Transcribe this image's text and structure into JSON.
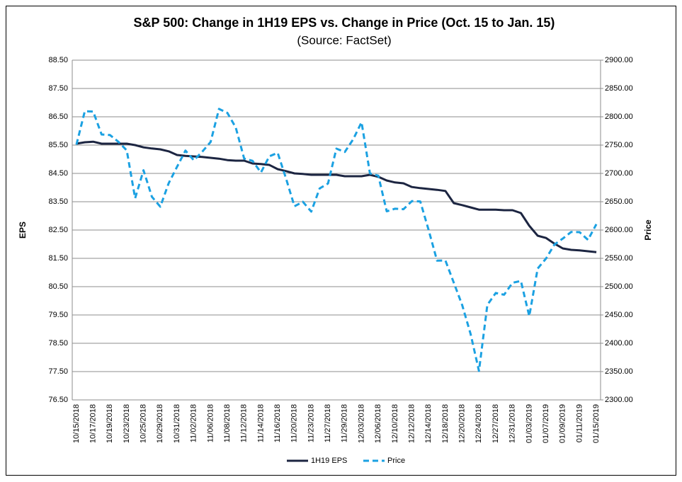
{
  "chart_data": {
    "type": "line",
    "title": "S&P 500: Change in 1H19 EPS vs. Change in Price (Oct. 15 to Jan. 15)",
    "subtitle": "(Source: FactSet)",
    "y_label": "EPS",
    "y2_label": "Price",
    "categories": [
      "10/15/2018",
      null,
      "10/17/2018",
      null,
      "10/19/2018",
      null,
      "10/23/2018",
      null,
      "10/25/2018",
      null,
      "10/29/2018",
      null,
      "10/31/2018",
      null,
      "11/02/2018",
      null,
      "11/06/2018",
      null,
      "11/08/2018",
      null,
      "11/12/2018",
      null,
      "11/14/2018",
      null,
      "11/16/2018",
      null,
      "11/20/2018",
      null,
      "11/23/2018",
      null,
      "11/27/2018",
      null,
      "11/29/2018",
      null,
      "12/03/2018",
      null,
      "12/06/2018",
      null,
      "12/10/2018",
      null,
      "12/12/2018",
      null,
      "12/14/2018",
      null,
      "12/18/2018",
      null,
      "12/20/2018",
      null,
      "12/24/2018",
      null,
      "12/27/2018",
      null,
      "12/31/2018",
      null,
      "01/03/2019",
      null,
      "01/07/2019",
      null,
      "01/09/2019",
      null,
      "01/11/2019",
      null,
      "01/15/2019"
    ],
    "series": [
      {
        "name": "1H19 EPS",
        "color": "#1c2541",
        "dash": false,
        "values": [
          85.55,
          85.6,
          85.62,
          85.55,
          85.55,
          85.55,
          85.55,
          85.5,
          85.42,
          85.38,
          85.35,
          85.28,
          85.15,
          85.12,
          85.1,
          85.08,
          85.05,
          85.02,
          84.97,
          84.95,
          84.95,
          84.85,
          84.83,
          84.8,
          84.65,
          84.58,
          84.5,
          84.48,
          84.45,
          84.45,
          84.45,
          84.45,
          84.4,
          84.4,
          84.4,
          84.45,
          84.38,
          84.25,
          84.18,
          84.15,
          84.02,
          83.98,
          83.95,
          83.92,
          83.88,
          83.45,
          83.38,
          83.3,
          83.22,
          83.22,
          83.22,
          83.2,
          83.2,
          83.1,
          82.65,
          82.3,
          82.22,
          82.02,
          81.85,
          81.8,
          81.78,
          81.75,
          81.72
        ]
      },
      {
        "name": "Price",
        "color": "#1ba1e2",
        "dash": true,
        "axis": "y2",
        "values": [
          2750.79,
          2809.92,
          2809.21,
          2768.78,
          2767.78,
          2755.88,
          2740.69,
          2656.1,
          2705.57,
          2658.69,
          2641.25,
          2682.63,
          2711.74,
          2740.37,
          2723.06,
          2738.31,
          2755.45,
          2813.89,
          2806.83,
          2781.01,
          2726.22,
          2722.18,
          2701.58,
          2730.2,
          2736.27,
          2690.73,
          2641.89,
          2649.93,
          2632.56,
          2673.45,
          2682.17,
          2743.79,
          2737.8,
          2760.17,
          2790.37,
          2700.06,
          2695.95,
          2633.08,
          2637.72,
          2636.78,
          2651.07,
          2650.54,
          2599.95,
          2545.94,
          2546.16,
          2506.96,
          2467.42,
          2416.62,
          2351.1,
          2467.7,
          2488.83,
          2485.74,
          2506.85,
          2510.03,
          2447.89,
          2531.94,
          2549.69,
          2574.41,
          2584.96,
          2596.64,
          2596.26,
          2582.61,
          2610.3
        ]
      }
    ],
    "ylim": [
      76.5,
      88.5
    ],
    "yticks": [
      {
        "value": 76.5,
        "label": "76.50"
      },
      {
        "value": 77.5,
        "label": "77.50"
      },
      {
        "value": 78.5,
        "label": "78.50"
      },
      {
        "value": 79.5,
        "label": "79.50"
      },
      {
        "value": 80.5,
        "label": "80.50"
      },
      {
        "value": 81.5,
        "label": "81.50"
      },
      {
        "value": 82.5,
        "label": "82.50"
      },
      {
        "value": 83.5,
        "label": "83.50"
      },
      {
        "value": 84.5,
        "label": "84.50"
      },
      {
        "value": 85.5,
        "label": "85.50"
      },
      {
        "value": 86.5,
        "label": "86.50"
      },
      {
        "value": 87.5,
        "label": "87.50"
      },
      {
        "value": 88.5,
        "label": "88.50"
      }
    ],
    "y2lim": [
      2300,
      2900
    ],
    "y2ticks": [
      {
        "value": 2300,
        "label": "2300.00"
      },
      {
        "value": 2350,
        "label": "2350.00"
      },
      {
        "value": 2400,
        "label": "2400.00"
      },
      {
        "value": 2450,
        "label": "2450.00"
      },
      {
        "value": 2500,
        "label": "2500.00"
      },
      {
        "value": 2550,
        "label": "2550.00"
      },
      {
        "value": 2600,
        "label": "2600.00"
      },
      {
        "value": 2650,
        "label": "2650.00"
      },
      {
        "value": 2700,
        "label": "2700.00"
      },
      {
        "value": 2750,
        "label": "2750.00"
      },
      {
        "value": 2800,
        "label": "2800.00"
      },
      {
        "value": 2850,
        "label": "2850.00"
      },
      {
        "value": 2900,
        "label": "2900.00"
      }
    ],
    "grid": true,
    "legend": "bottom"
  }
}
